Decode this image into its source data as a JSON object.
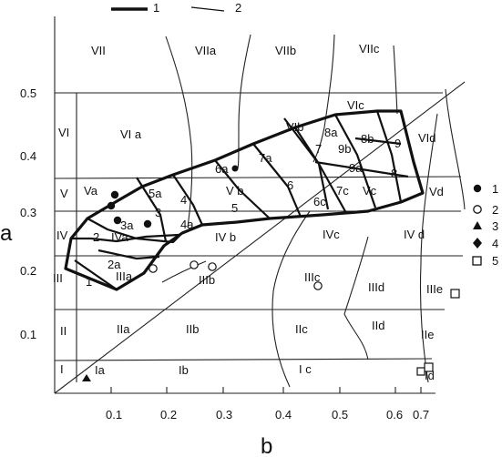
{
  "axes": {
    "x_title": "b",
    "y_title": "a",
    "x_ticks": [
      "0.1",
      "0.2",
      "0.3",
      "0.4",
      "0.5",
      "0.6",
      "0.7"
    ],
    "y_ticks": [
      "0.5",
      "0.4",
      "0.3",
      "0.2",
      "0.1"
    ]
  },
  "legend": {
    "lines": [
      {
        "symbol": "thick-line",
        "label": "1"
      },
      {
        "symbol": "thin-line",
        "label": "2"
      }
    ],
    "markers": [
      {
        "symbol": "filled-circle",
        "label": "1"
      },
      {
        "symbol": "open-circle",
        "label": "2"
      },
      {
        "symbol": "filled-triangle",
        "label": "3"
      },
      {
        "symbol": "filled-diamond",
        "label": "4"
      },
      {
        "symbol": "open-square",
        "label": "5"
      }
    ]
  },
  "zones": [
    "VII",
    "VIIa",
    "VIIb",
    "VIIc",
    "VI",
    "VI a",
    "VIb",
    "VIc",
    "8a",
    "8b",
    "9",
    "VId",
    "7",
    "9b",
    "6a",
    "7a",
    "9a",
    "8",
    "V",
    "Va",
    "5a",
    "4",
    "V b",
    "6",
    "6c",
    "7c",
    "Vc",
    "Vd",
    "3",
    "3a",
    "5",
    "4a",
    "IV",
    "2",
    "IVa",
    "IV b",
    "IVc",
    "IV d",
    "2a",
    "III",
    "IIIa",
    "1",
    "IIIb",
    "IIIc",
    "IIId",
    "IIIe",
    "II",
    "IIa",
    "IIb",
    "IIc",
    "IId",
    "IIe",
    "I",
    "Ia",
    "Ib",
    "I c",
    "Id"
  ]
}
